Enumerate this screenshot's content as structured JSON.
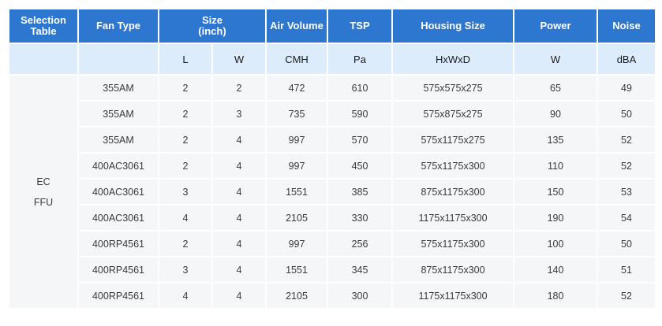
{
  "header": {
    "selection_table": "Selection\nTable",
    "fan_type": "Fan Type",
    "size": "Size\n(inch)",
    "air_volume": "Air Volume",
    "tsp": "TSP",
    "housing_size": "Housing Size",
    "power": "Power",
    "noise": "Noise"
  },
  "units": {
    "l": "L",
    "w": "W",
    "air_volume": "CMH",
    "tsp": "Pa",
    "housing_size": "HxWxD",
    "power": "W",
    "noise": "dBA"
  },
  "group_label": [
    "EC",
    "FFU"
  ],
  "rows": [
    {
      "fan": "355AM",
      "l": "2",
      "w": "2",
      "air": "472",
      "tsp": "610",
      "housing": "575x575x275",
      "power": "65",
      "noise": "49"
    },
    {
      "fan": "355AM",
      "l": "2",
      "w": "3",
      "air": "735",
      "tsp": "590",
      "housing": "575x875x275",
      "power": "90",
      "noise": "50"
    },
    {
      "fan": "355AM",
      "l": "2",
      "w": "4",
      "air": "997",
      "tsp": "570",
      "housing": "575x1175x275",
      "power": "135",
      "noise": "52"
    },
    {
      "fan": "400AC3061",
      "l": "2",
      "w": "4",
      "air": "997",
      "tsp": "450",
      "housing": "575x1175x300",
      "power": "110",
      "noise": "52"
    },
    {
      "fan": "400AC3061",
      "l": "3",
      "w": "4",
      "air": "1551",
      "tsp": "385",
      "housing": "875x1175x300",
      "power": "150",
      "noise": "53"
    },
    {
      "fan": "400AC3061",
      "l": "4",
      "w": "4",
      "air": "2105",
      "tsp": "330",
      "housing": "1175x1175x300",
      "power": "190",
      "noise": "54"
    },
    {
      "fan": "400RP4561",
      "l": "2",
      "w": "4",
      "air": "997",
      "tsp": "256",
      "housing": "575x1175x300",
      "power": "100",
      "noise": "50"
    },
    {
      "fan": "400RP4561",
      "l": "3",
      "w": "4",
      "air": "1551",
      "tsp": "345",
      "housing": "875x1175x300",
      "power": "140",
      "noise": "51"
    },
    {
      "fan": "400RP4561",
      "l": "4",
      "w": "4",
      "air": "2105",
      "tsp": "300",
      "housing": "1175x1175x300",
      "power": "180",
      "noise": "52"
    }
  ]
}
